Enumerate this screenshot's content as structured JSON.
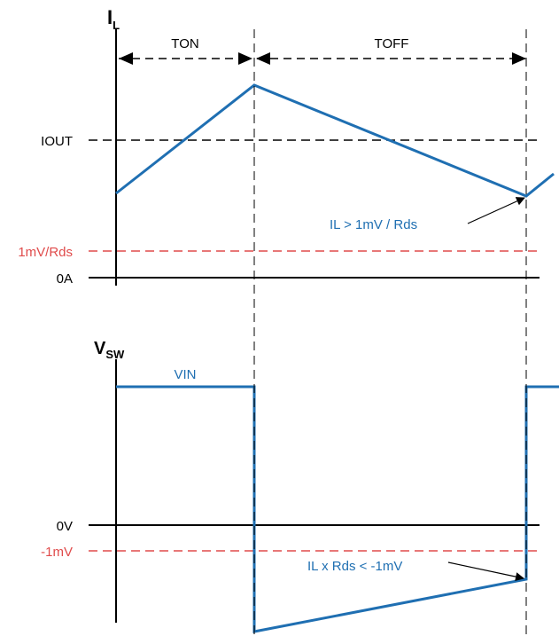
{
  "colors": {
    "signal": "#1f6fb2",
    "threshold": "#e04b4b",
    "axis": "#000000"
  },
  "inductor_current": {
    "symbol": "I",
    "subscript": "L",
    "ton_label": "TON",
    "toff_label": "TOFF",
    "iout_label": "IOUT",
    "threshold_label": "1mV/Rds",
    "zero_label": "0A",
    "annotation": "IL > 1mV / Rds"
  },
  "switch_voltage": {
    "symbol": "V",
    "subscript": "SW",
    "vin_label": "VIN",
    "zero_label": "0V",
    "threshold_label": "-1mV",
    "annotation": "IL x Rds < -1mV"
  }
}
